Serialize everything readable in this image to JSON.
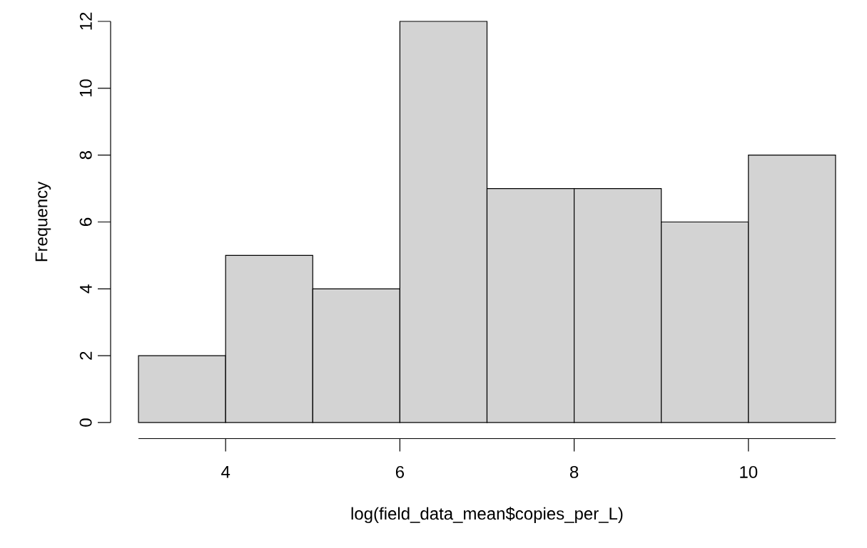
{
  "chart_data": {
    "type": "histogram",
    "xlabel": "log(field_data_mean$copies_per_L)",
    "ylabel": "Frequency",
    "bins": [
      3,
      4,
      5,
      6,
      7,
      8,
      9,
      10,
      11
    ],
    "values": [
      2,
      5,
      4,
      12,
      7,
      7,
      6,
      8
    ],
    "color": "#d3d3d3",
    "xlim": [
      3,
      11
    ],
    "ylim": [
      0,
      12
    ],
    "xticks": [
      4,
      6,
      8,
      10
    ],
    "yticks": [
      0,
      2,
      4,
      6,
      8,
      10,
      12
    ],
    "grid": false
  }
}
